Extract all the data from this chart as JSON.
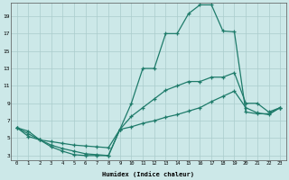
{
  "xlabel": "Humidex (Indice chaleur)",
  "xlim": [
    -0.5,
    23.5
  ],
  "ylim": [
    2.5,
    20.5
  ],
  "xticks": [
    0,
    1,
    2,
    3,
    4,
    5,
    6,
    7,
    8,
    9,
    10,
    11,
    12,
    13,
    14,
    15,
    16,
    17,
    18,
    19,
    20,
    21,
    22,
    23
  ],
  "yticks": [
    3,
    5,
    7,
    9,
    11,
    13,
    15,
    17,
    19
  ],
  "bg_color": "#cce8e8",
  "grid_color": "#aacccc",
  "line_color": "#1e7b6a",
  "line1_x": [
    0,
    1,
    2,
    3,
    4,
    5,
    6,
    7,
    8,
    9,
    10,
    11,
    12,
    13,
    14,
    15,
    16,
    17,
    18,
    19,
    20,
    21,
    22,
    23
  ],
  "line1_y": [
    6.2,
    5.8,
    4.8,
    4.6,
    4.4,
    4.2,
    4.1,
    4.0,
    3.9,
    6.0,
    9.0,
    13.0,
    13.0,
    17.0,
    17.0,
    19.3,
    20.3,
    20.3,
    17.3,
    17.2,
    8.0,
    7.8,
    7.8,
    8.5
  ],
  "line2_x": [
    0,
    1,
    2,
    3,
    4,
    5,
    6,
    7,
    8,
    9,
    10,
    11,
    12,
    13,
    14,
    15,
    16,
    17,
    18,
    19,
    20,
    21,
    22,
    23
  ],
  "line2_y": [
    6.2,
    5.2,
    4.8,
    4.2,
    3.8,
    3.5,
    3.2,
    3.1,
    3.0,
    6.0,
    6.3,
    6.7,
    7.0,
    7.4,
    7.7,
    8.1,
    8.5,
    9.2,
    9.8,
    10.4,
    8.5,
    7.9,
    7.7,
    8.5
  ],
  "line3_x": [
    0,
    1,
    2,
    3,
    4,
    5,
    6,
    7,
    8,
    9,
    10,
    11,
    12,
    13,
    14,
    15,
    16,
    17,
    18,
    19,
    20,
    21,
    22,
    23
  ],
  "line3_y": [
    6.2,
    5.5,
    4.8,
    4.0,
    3.5,
    3.1,
    3.0,
    3.0,
    3.0,
    6.0,
    7.5,
    8.5,
    9.5,
    10.5,
    11.0,
    11.5,
    11.5,
    12.0,
    12.0,
    12.5,
    9.0,
    9.0,
    8.0,
    8.5
  ]
}
